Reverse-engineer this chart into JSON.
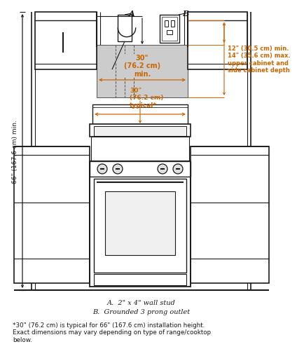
{
  "bg_color": "#ffffff",
  "line_color": "#1a1a1a",
  "orange_color": "#cc6600",
  "gray_fill": "#cccccc",
  "title_A": "A",
  "title_B": "B",
  "label_30_min": "30\"\n(76.2 cm)\nmin.",
  "label_30_typ": "30\"\n(76.2 cm)\ntypical*",
  "label_66": "66\" (167.6 cm) min.",
  "label_12_14": "12\" (30.5 cm) min.\n14\" (35.6 cm) max.\nupper cabinet and\nside cabinet depth",
  "legend_A": "A.  2\" x 4\" wall stud",
  "legend_B": "B.  Grounded 3 prong outlet",
  "footnote": "*30\" (76.2 cm) is typical for 66\" (167.6 cm) installation height.\nExact dimensions may vary depending on type of range/cooktop\nbelow.",
  "fig_width": 3.84,
  "fig_height": 4.89
}
